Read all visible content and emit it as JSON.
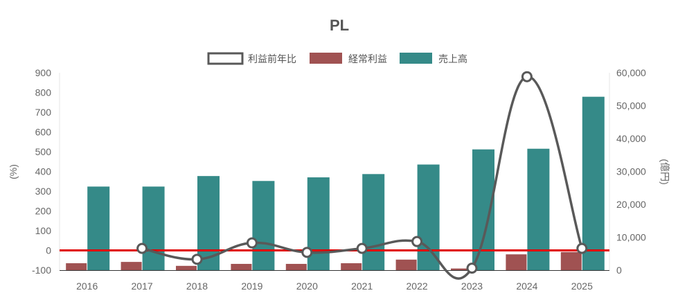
{
  "chart_data": {
    "type": "bar",
    "title": "PL",
    "categories": [
      "2016",
      "2017",
      "2018",
      "2019",
      "2020",
      "2021",
      "2022",
      "2023",
      "2024",
      "2025"
    ],
    "y_left": {
      "label": "(%)",
      "ylim": [
        -100,
        900
      ],
      "ticks": [
        -100,
        0,
        100,
        200,
        300,
        400,
        500,
        600,
        700,
        800,
        900
      ],
      "tick_labels": [
        "-100",
        "0",
        "100",
        "200",
        "300",
        "400",
        "500",
        "600",
        "700",
        "800",
        "900"
      ]
    },
    "y_right": {
      "label": "(億円)",
      "ylim": [
        0,
        60000
      ],
      "ticks": [
        0,
        10000,
        20000,
        30000,
        40000,
        50000,
        60000
      ],
      "tick_labels": [
        "0",
        "10,000",
        "20,000",
        "30,000",
        "40,000",
        "50,000",
        "60,000"
      ]
    },
    "series": [
      {
        "name": "利益前年比",
        "kind": "line",
        "axis": "left",
        "color": "#595959",
        "values": [
          null,
          10,
          -45,
          38,
          -10,
          10,
          45,
          -90,
          880,
          10
        ]
      },
      {
        "name": "経常利益",
        "kind": "bar",
        "axis": "right",
        "color": "#a05252",
        "values": [
          2100,
          2500,
          1300,
          1900,
          1900,
          2100,
          3200,
          500,
          4800,
          5500
        ]
      },
      {
        "name": "売上高",
        "kind": "bar",
        "axis": "right",
        "color": "#358a88",
        "values": [
          25400,
          25400,
          28600,
          27100,
          28200,
          29200,
          32100,
          36700,
          36900,
          52700
        ]
      }
    ],
    "reference_line": {
      "axis": "left",
      "value": 0,
      "color": "#e00000"
    },
    "legend": "top-center"
  }
}
